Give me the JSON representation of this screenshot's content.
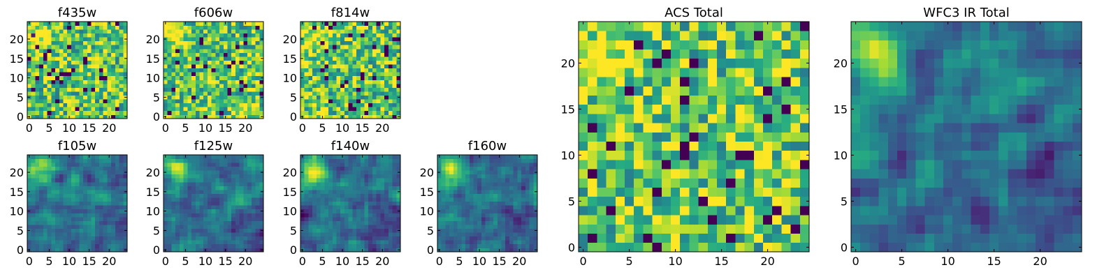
{
  "chart_data": [
    {
      "type": "heatmap",
      "title": "f435w",
      "colormap": "viridis",
      "pattern": "noise",
      "seed": 11,
      "grid": false,
      "rows": 25,
      "cols": 25,
      "xlim": [
        -0.5,
        24.5
      ],
      "ylim": [
        -0.5,
        24.5
      ],
      "x_ticks": [
        0,
        5,
        10,
        15,
        20
      ],
      "y_ticks": [
        0,
        5,
        10,
        15,
        20
      ],
      "x_tick_labels": [
        "0",
        "5",
        "10",
        "15",
        "20"
      ],
      "y_tick_labels": [
        "0",
        "5",
        "10",
        "15",
        "20"
      ]
    },
    {
      "type": "heatmap",
      "title": "f606w",
      "colormap": "viridis",
      "pattern": "noise",
      "seed": 23,
      "grid": false,
      "rows": 25,
      "cols": 25,
      "xlim": [
        -0.5,
        24.5
      ],
      "ylim": [
        -0.5,
        24.5
      ],
      "x_ticks": [
        0,
        5,
        10,
        15,
        20
      ],
      "y_ticks": [
        0,
        5,
        10,
        15,
        20
      ],
      "x_tick_labels": [
        "0",
        "5",
        "10",
        "15",
        "20"
      ],
      "y_tick_labels": [
        "0",
        "5",
        "10",
        "15",
        "20"
      ]
    },
    {
      "type": "heatmap",
      "title": "f814w",
      "colormap": "viridis",
      "pattern": "noise",
      "seed": 37,
      "grid": false,
      "rows": 25,
      "cols": 25,
      "xlim": [
        -0.5,
        24.5
      ],
      "ylim": [
        -0.5,
        24.5
      ],
      "x_ticks": [
        0,
        5,
        10,
        15,
        20
      ],
      "y_ticks": [
        0,
        5,
        10,
        15,
        20
      ],
      "x_tick_labels": [
        "0",
        "5",
        "10",
        "15",
        "20"
      ],
      "y_tick_labels": [
        "0",
        "5",
        "10",
        "15",
        "20"
      ]
    },
    {
      "type": "heatmap",
      "title": "f105w",
      "colormap": "viridis",
      "pattern": "smooth",
      "seed": 41,
      "grid": false,
      "rows": 25,
      "cols": 25,
      "xlim": [
        -0.5,
        24.5
      ],
      "ylim": [
        -0.5,
        24.5
      ],
      "x_ticks": [
        0,
        5,
        10,
        15,
        20
      ],
      "y_ticks": [
        0,
        5,
        10,
        15,
        20
      ],
      "x_tick_labels": [
        "0",
        "5",
        "10",
        "15",
        "20"
      ],
      "y_tick_labels": [
        "0",
        "5",
        "10",
        "15",
        "20"
      ]
    },
    {
      "type": "heatmap",
      "title": "f125w",
      "colormap": "viridis",
      "pattern": "smooth",
      "seed": 53,
      "grid": false,
      "rows": 25,
      "cols": 25,
      "xlim": [
        -0.5,
        24.5
      ],
      "ylim": [
        -0.5,
        24.5
      ],
      "x_ticks": [
        0,
        5,
        10,
        15,
        20
      ],
      "y_ticks": [
        0,
        5,
        10,
        15,
        20
      ],
      "x_tick_labels": [
        "0",
        "5",
        "10",
        "15",
        "20"
      ],
      "y_tick_labels": [
        "0",
        "5",
        "10",
        "15",
        "20"
      ]
    },
    {
      "type": "heatmap",
      "title": "f140w",
      "colormap": "viridis",
      "pattern": "smooth",
      "seed": 67,
      "grid": false,
      "rows": 25,
      "cols": 25,
      "xlim": [
        -0.5,
        24.5
      ],
      "ylim": [
        -0.5,
        24.5
      ],
      "x_ticks": [
        0,
        5,
        10,
        15,
        20
      ],
      "y_ticks": [
        0,
        5,
        10,
        15,
        20
      ],
      "x_tick_labels": [
        "0",
        "5",
        "10",
        "15",
        "20"
      ],
      "y_tick_labels": [
        "0",
        "5",
        "10",
        "15",
        "20"
      ]
    },
    {
      "type": "heatmap",
      "title": "f160w",
      "colormap": "viridis",
      "pattern": "smooth",
      "seed": 79,
      "grid": false,
      "rows": 25,
      "cols": 25,
      "xlim": [
        -0.5,
        24.5
      ],
      "ylim": [
        -0.5,
        24.5
      ],
      "x_ticks": [
        0,
        5,
        10,
        15,
        20
      ],
      "y_ticks": [
        0,
        5,
        10,
        15,
        20
      ],
      "x_tick_labels": [
        "0",
        "5",
        "10",
        "15",
        "20"
      ],
      "y_tick_labels": [
        "0",
        "5",
        "10",
        "15",
        "20"
      ]
    },
    {
      "type": "heatmap",
      "title": "ACS Total",
      "colormap": "viridis",
      "pattern": "noise",
      "seed": 83,
      "grid": false,
      "rows": 25,
      "cols": 25,
      "xlim": [
        -0.5,
        24.5
      ],
      "ylim": [
        -0.5,
        24.5
      ],
      "x_ticks": [
        0,
        5,
        10,
        15,
        20
      ],
      "y_ticks": [
        0,
        5,
        10,
        15,
        20
      ],
      "x_tick_labels": [
        "0",
        "5",
        "10",
        "15",
        "20"
      ],
      "y_tick_labels": [
        "0",
        "5",
        "10",
        "15",
        "20"
      ]
    },
    {
      "type": "heatmap",
      "title": "WFC3 IR Total",
      "colormap": "viridis",
      "pattern": "smooth",
      "seed": 97,
      "grid": false,
      "rows": 25,
      "cols": 25,
      "xlim": [
        -0.5,
        24.5
      ],
      "ylim": [
        -0.5,
        24.5
      ],
      "x_ticks": [
        0,
        5,
        10,
        15,
        20
      ],
      "y_ticks": [
        0,
        5,
        10,
        15,
        20
      ],
      "x_tick_labels": [
        "0",
        "5",
        "10",
        "15",
        "20"
      ],
      "y_tick_labels": [
        "0",
        "5",
        "10",
        "15",
        "20"
      ]
    }
  ]
}
